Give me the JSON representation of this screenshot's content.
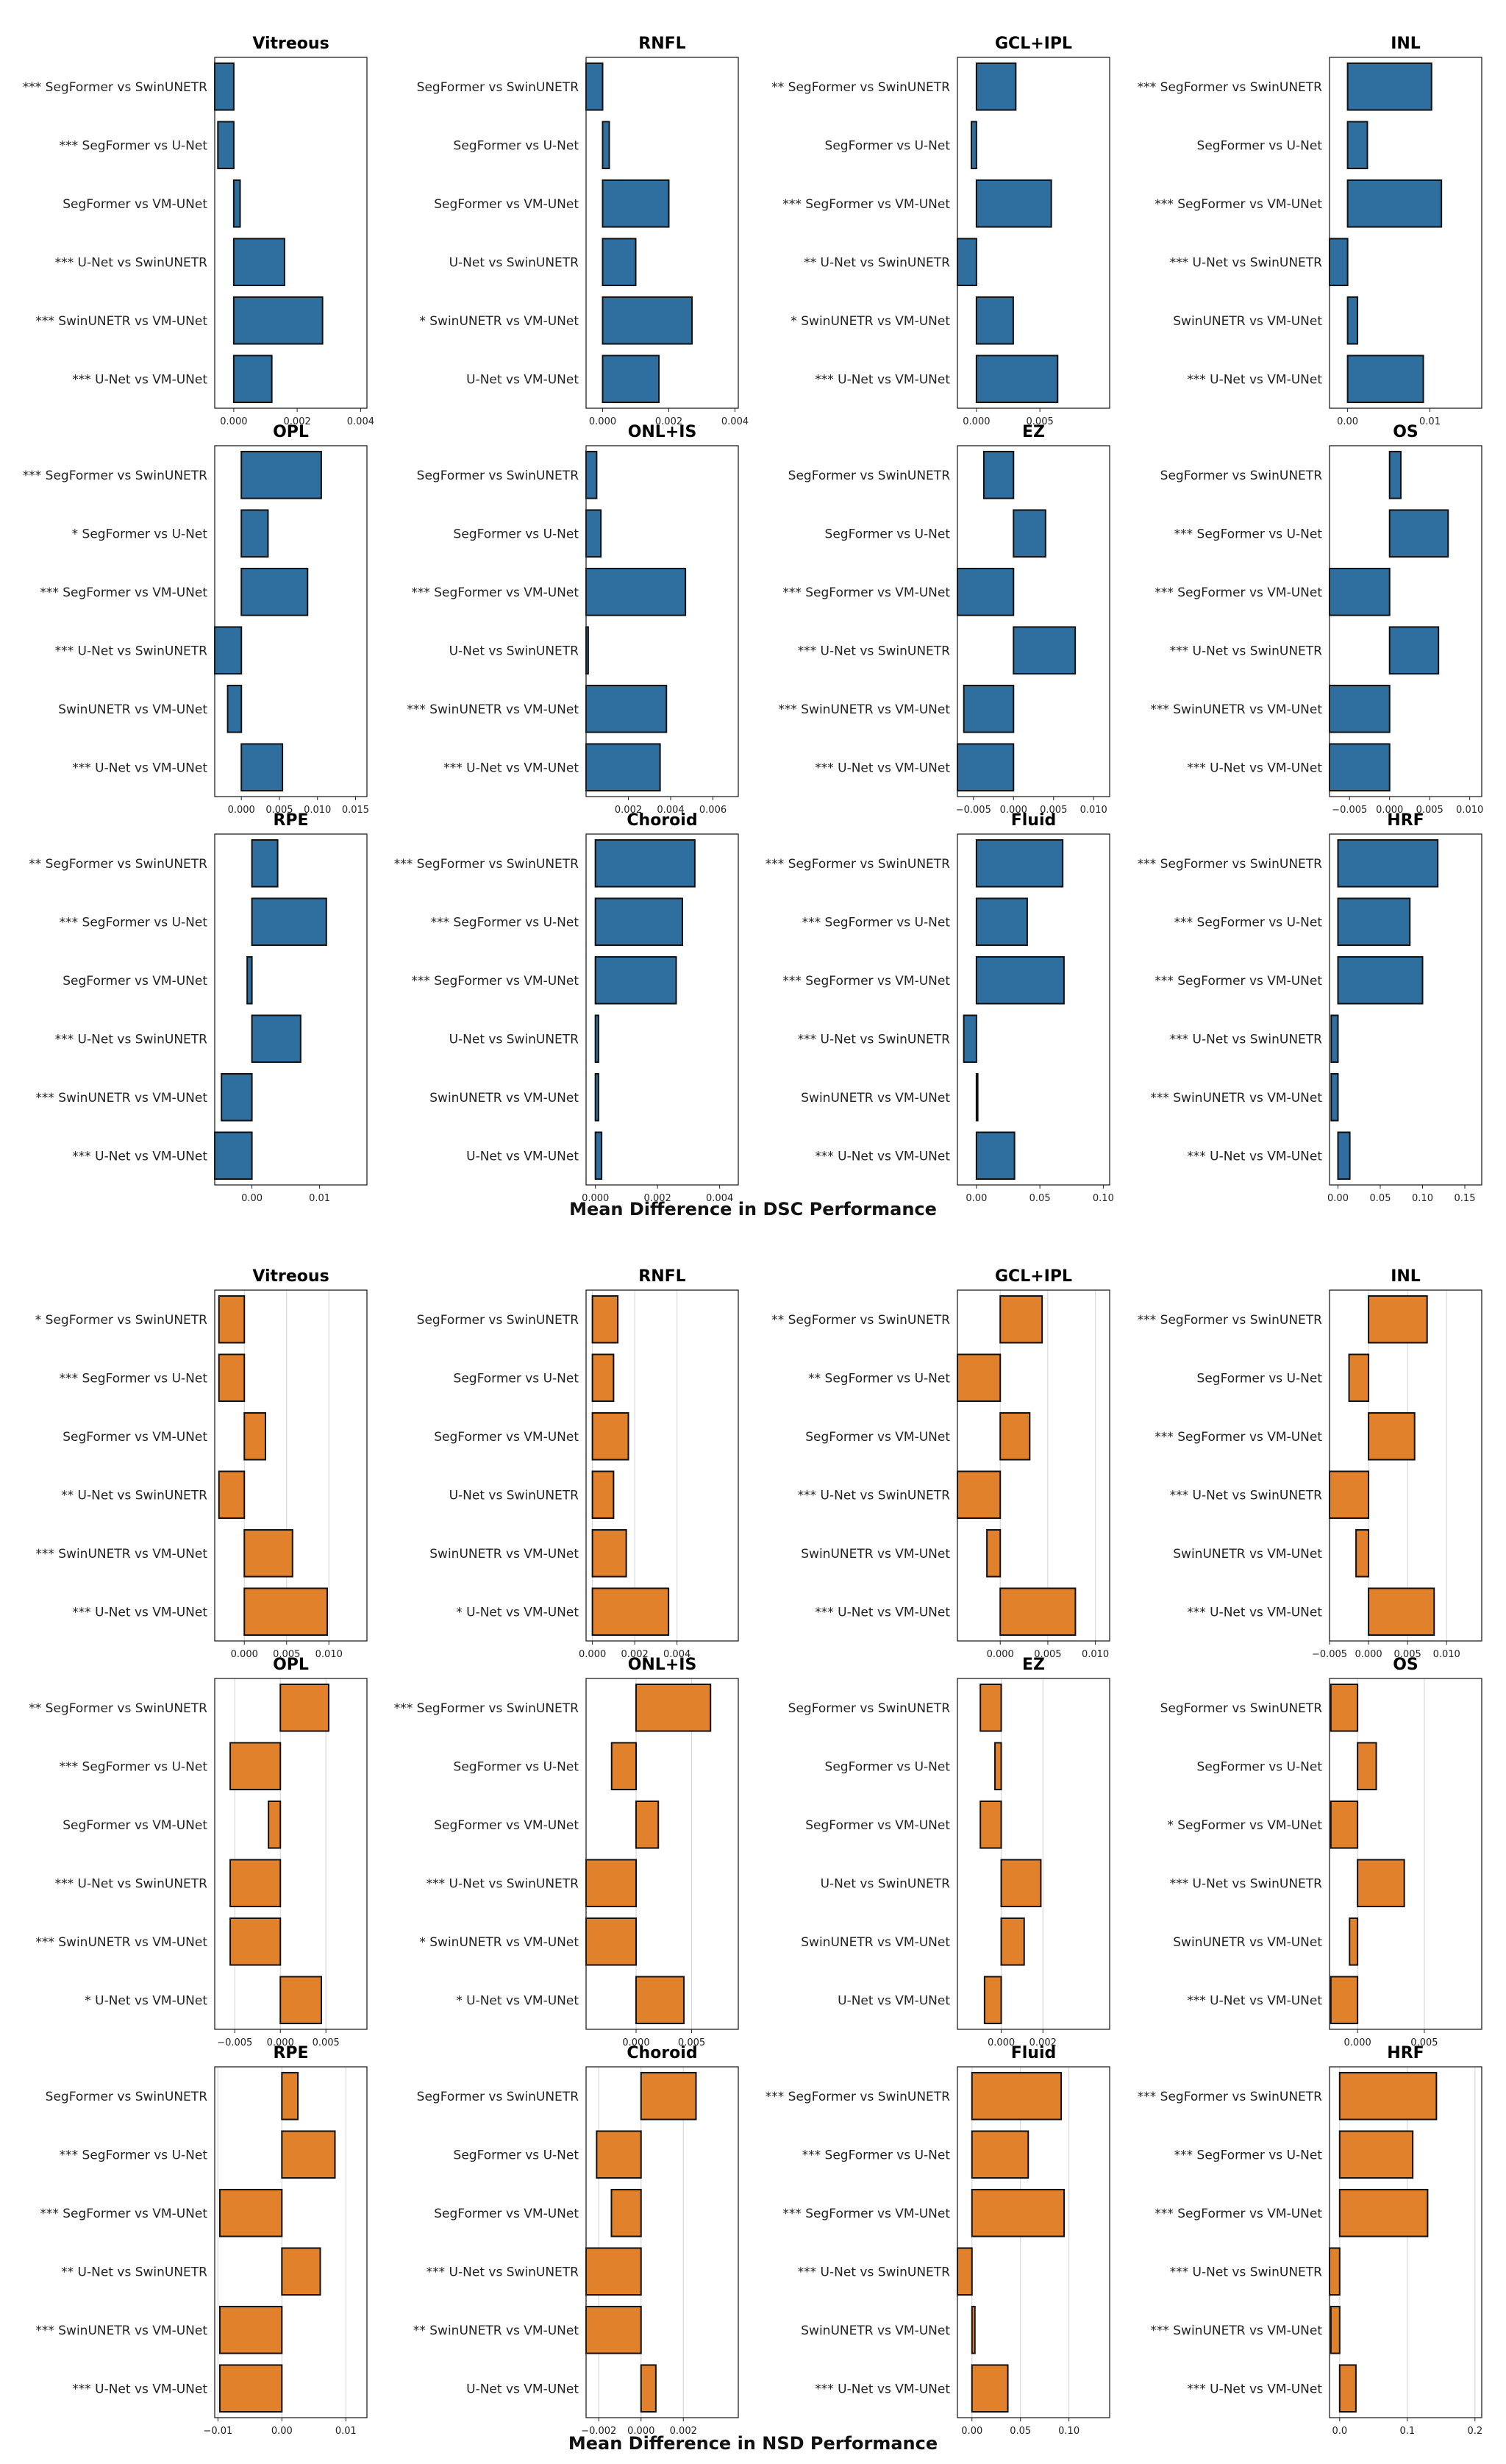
{
  "chart_data": [
    {
      "type": "bar",
      "orientation": "horizontal",
      "metric": "DSC",
      "xlabel": "Mean Difference in DSC Performance",
      "color": "#2e6f9f",
      "grid": false,
      "panels": [
        {
          "title": "Vitreous",
          "xlim": [
            -0.0006,
            0.0042
          ],
          "xticks": [
            0,
            0.002,
            0.004
          ],
          "xticklabels": [
            "0.000",
            "0.002",
            "0.004"
          ],
          "labels": [
            "*** SegFormer vs SwinUNETR",
            "*** SegFormer vs U-Net",
            "SegFormer vs VM-UNet",
            "*** U-Net vs SwinUNETR",
            "*** SwinUNETR vs VM-UNet",
            "*** U-Net vs VM-UNet"
          ],
          "values": [
            -0.0006,
            -0.0005,
            0.0002,
            0.0016,
            0.0028,
            0.0012
          ]
        },
        {
          "title": "RNFL",
          "xlim": [
            -0.0005,
            0.0041
          ],
          "xticks": [
            0,
            0.002,
            0.004
          ],
          "xticklabels": [
            "0.000",
            "0.002",
            "0.004"
          ],
          "labels": [
            "SegFormer vs SwinUNETR",
            "SegFormer vs U-Net",
            "SegFormer vs VM-UNet",
            "U-Net vs SwinUNETR",
            "* SwinUNETR vs VM-UNet",
            "U-Net vs VM-UNet"
          ],
          "values": [
            -0.0005,
            0.0002,
            0.002,
            0.001,
            0.0027,
            0.0017
          ]
        },
        {
          "title": "GCL+IPL",
          "xlim": [
            -0.0015,
            0.0105
          ],
          "xticks": [
            0,
            0.005
          ],
          "xticklabels": [
            "0.000",
            "0.005"
          ],
          "labels": [
            "** SegFormer vs SwinUNETR",
            "SegFormer vs U-Net",
            "*** SegFormer vs VM-UNet",
            "** U-Net vs SwinUNETR",
            "* SwinUNETR vs VM-UNet",
            "*** U-Net vs VM-UNet"
          ],
          "values": [
            0.0031,
            -0.0004,
            0.0059,
            -0.0015,
            0.0029,
            0.0064
          ]
        },
        {
          "title": "INL",
          "xlim": [
            -0.0022,
            0.0163
          ],
          "xticks": [
            0,
            0.01
          ],
          "xticklabels": [
            "0.00",
            "0.01"
          ],
          "labels": [
            "*** SegFormer vs SwinUNETR",
            "SegFormer vs U-Net",
            "*** SegFormer vs VM-UNet",
            "*** U-Net vs SwinUNETR",
            "SwinUNETR vs VM-UNet",
            "*** U-Net vs VM-UNet"
          ],
          "values": [
            0.0102,
            0.0024,
            0.0114,
            -0.0022,
            0.0012,
            0.0092
          ]
        },
        {
          "title": "OPL",
          "xlim": [
            -0.0035,
            0.0165
          ],
          "xticks": [
            0,
            0.005,
            0.01,
            0.015
          ],
          "xticklabels": [
            "0.000",
            "0.005",
            "0.010",
            "0.015"
          ],
          "labels": [
            "*** SegFormer vs SwinUNETR",
            "* SegFormer vs U-Net",
            "*** SegFormer vs VM-UNet",
            "*** U-Net vs SwinUNETR",
            "SwinUNETR vs VM-UNet",
            "*** U-Net vs VM-UNet"
          ],
          "values": [
            0.0105,
            0.0035,
            0.0087,
            -0.0035,
            -0.0018,
            0.0054
          ]
        },
        {
          "title": "ONL+IS",
          "xlim": [
            0,
            0.0072
          ],
          "xticks": [
            0.002,
            0.004,
            0.006
          ],
          "xticklabels": [
            "0.002",
            "0.004",
            "0.006"
          ],
          "labels": [
            "SegFormer vs SwinUNETR",
            "SegFormer vs U-Net",
            "*** SegFormer vs VM-UNet",
            "U-Net vs SwinUNETR",
            "*** SwinUNETR vs VM-UNet",
            "*** U-Net vs VM-UNet"
          ],
          "values": [
            0.0005,
            0.0007,
            0.0047,
            0.0001,
            0.0038,
            0.0035
          ]
        },
        {
          "title": "EZ",
          "xlim": [
            -0.007,
            0.012
          ],
          "xticks": [
            -0.005,
            0,
            0.005,
            0.01
          ],
          "xticklabels": [
            "−0.005",
            "0.000",
            "0.005",
            "0.010"
          ],
          "labels": [
            "SegFormer vs SwinUNETR",
            "SegFormer vs U-Net",
            "*** SegFormer vs VM-UNet",
            "*** U-Net vs SwinUNETR",
            "*** SwinUNETR vs VM-UNet",
            "*** U-Net vs VM-UNet"
          ],
          "values": [
            -0.0037,
            0.004,
            -0.007,
            0.0077,
            -0.0062,
            -0.007
          ]
        },
        {
          "title": "OS",
          "xlim": [
            -0.0075,
            0.0115
          ],
          "xticks": [
            -0.005,
            0,
            0.005,
            0.01
          ],
          "xticklabels": [
            "−0.005",
            "0.000",
            "0.005",
            "0.010"
          ],
          "labels": [
            "SegFormer vs SwinUNETR",
            "*** SegFormer vs U-Net",
            "*** SegFormer vs VM-UNet",
            "*** U-Net vs SwinUNETR",
            "*** SwinUNETR vs VM-UNet",
            "*** U-Net vs VM-UNet"
          ],
          "values": [
            0.0014,
            0.0073,
            -0.0075,
            0.0061,
            -0.0075,
            -0.0075
          ]
        },
        {
          "title": "RPE",
          "xlim": [
            -0.0055,
            0.017
          ],
          "xticks": [
            0,
            0.01
          ],
          "xticklabels": [
            "0.00",
            "0.01"
          ],
          "labels": [
            "** SegFormer vs SwinUNETR",
            "*** SegFormer vs U-Net",
            "SegFormer vs VM-UNet",
            "*** U-Net vs SwinUNETR",
            "*** SwinUNETR vs VM-UNet",
            "*** U-Net vs VM-UNet"
          ],
          "values": [
            0.0038,
            0.011,
            -0.0007,
            0.0072,
            -0.0045,
            -0.0055
          ]
        },
        {
          "title": "Choroid",
          "xlim": [
            -0.0003,
            0.0046
          ],
          "xticks": [
            0,
            0.002,
            0.004
          ],
          "xticklabels": [
            "0.000",
            "0.002",
            "0.004"
          ],
          "labels": [
            "*** SegFormer vs SwinUNETR",
            "*** SegFormer vs U-Net",
            "*** SegFormer vs VM-UNet",
            "U-Net vs SwinUNETR",
            "SwinUNETR vs VM-UNet",
            "U-Net vs VM-UNet"
          ],
          "values": [
            0.0032,
            0.0028,
            0.0026,
            0.0001,
            0.0001,
            0.0002
          ]
        },
        {
          "title": "Fluid",
          "xlim": [
            -0.015,
            0.105
          ],
          "xticks": [
            0,
            0.05,
            0.1
          ],
          "xticklabels": [
            "0.00",
            "0.05",
            "0.10"
          ],
          "labels": [
            "*** SegFormer vs SwinUNETR",
            "*** SegFormer vs U-Net",
            "*** SegFormer vs VM-UNet",
            "*** U-Net vs SwinUNETR",
            "SwinUNETR vs VM-UNet",
            "*** U-Net vs VM-UNet"
          ],
          "values": [
            0.068,
            0.04,
            0.069,
            -0.01,
            0.001,
            0.03
          ]
        },
        {
          "title": "HRF",
          "xlim": [
            -0.01,
            0.17
          ],
          "xticks": [
            0,
            0.05,
            0.1,
            0.15
          ],
          "xticklabels": [
            "0.00",
            "0.05",
            "0.10",
            "0.15"
          ],
          "labels": [
            "*** SegFormer vs SwinUNETR",
            "*** SegFormer vs U-Net",
            "*** SegFormer vs VM-UNet",
            "*** U-Net vs SwinUNETR",
            "*** SwinUNETR vs VM-UNet",
            "*** U-Net vs VM-UNet"
          ],
          "values": [
            0.118,
            0.085,
            0.1,
            -0.008,
            -0.008,
            0.014
          ]
        }
      ]
    },
    {
      "type": "bar",
      "orientation": "horizontal",
      "metric": "NSD",
      "xlabel": "Mean Difference in NSD Performance",
      "color": "#e2812c",
      "grid": true,
      "panels": [
        {
          "title": "Vitreous",
          "xlim": [
            -0.0035,
            0.0145
          ],
          "xticks": [
            0,
            0.005,
            0.01
          ],
          "xticklabels": [
            "0.000",
            "0.005",
            "0.010"
          ],
          "labels": [
            "* SegFormer vs SwinUNETR",
            "*** SegFormer vs U-Net",
            "SegFormer vs VM-UNet",
            "** U-Net vs SwinUNETR",
            "*** SwinUNETR vs VM-UNet",
            "*** U-Net vs VM-UNet"
          ],
          "values": [
            -0.003,
            -0.003,
            0.0025,
            -0.003,
            0.0057,
            0.0098
          ]
        },
        {
          "title": "RNFL",
          "xlim": [
            -0.0003,
            0.0069
          ],
          "xticks": [
            0,
            0.002,
            0.004
          ],
          "xticklabels": [
            "0.000",
            "0.002",
            "0.004"
          ],
          "labels": [
            "SegFormer vs SwinUNETR",
            "SegFormer vs U-Net",
            "SegFormer vs VM-UNet",
            "U-Net vs SwinUNETR",
            "SwinUNETR vs VM-UNet",
            "* U-Net vs VM-UNet"
          ],
          "values": [
            0.0012,
            0.001,
            0.0017,
            0.001,
            0.0016,
            0.0036
          ]
        },
        {
          "title": "GCL+IPL",
          "xlim": [
            -0.0045,
            0.0115
          ],
          "xticks": [
            0,
            0.005,
            0.01
          ],
          "xticklabels": [
            "0.000",
            "0.005",
            "0.010"
          ],
          "labels": [
            "** SegFormer vs SwinUNETR",
            "** SegFormer vs U-Net",
            "SegFormer vs VM-UNet",
            "*** U-Net vs SwinUNETR",
            "SwinUNETR vs VM-UNet",
            "*** U-Net vs VM-UNet"
          ],
          "values": [
            0.0044,
            -0.0045,
            0.0031,
            -0.0045,
            -0.0014,
            0.0079
          ]
        },
        {
          "title": "INL",
          "xlim": [
            -0.005,
            0.0145
          ],
          "xticks": [
            -0.005,
            0,
            0.005,
            0.01
          ],
          "xticklabels": [
            "−0.005",
            "0.000",
            "0.005",
            "0.010"
          ],
          "labels": [
            "*** SegFormer vs SwinUNETR",
            "SegFormer vs U-Net",
            "*** SegFormer vs VM-UNet",
            "*** U-Net vs SwinUNETR",
            "SwinUNETR vs VM-UNet",
            "*** U-Net vs VM-UNet"
          ],
          "values": [
            0.0075,
            -0.0025,
            0.0059,
            -0.005,
            -0.0016,
            0.0084
          ]
        },
        {
          "title": "OPL",
          "xlim": [
            -0.0072,
            0.0095
          ],
          "xticks": [
            -0.005,
            0,
            0.005
          ],
          "xticklabels": [
            "−0.005",
            "0.000",
            "0.005"
          ],
          "labels": [
            "** SegFormer vs SwinUNETR",
            "*** SegFormer vs U-Net",
            "SegFormer vs VM-UNet",
            "*** U-Net vs SwinUNETR",
            "*** SwinUNETR vs VM-UNet",
            "* U-Net vs VM-UNet"
          ],
          "values": [
            0.0053,
            -0.0055,
            -0.0013,
            -0.0055,
            -0.0055,
            0.0045
          ]
        },
        {
          "title": "ONL+IS",
          "xlim": [
            -0.0045,
            0.0092
          ],
          "xticks": [
            0,
            0.005
          ],
          "xticklabels": [
            "0.000",
            "0.005"
          ],
          "labels": [
            "*** SegFormer vs SwinUNETR",
            "SegFormer vs U-Net",
            "SegFormer vs VM-UNet",
            "*** U-Net vs SwinUNETR",
            "* SwinUNETR vs VM-UNet",
            "* U-Net vs VM-UNet"
          ],
          "values": [
            0.0067,
            -0.0022,
            0.002,
            -0.0045,
            -0.0045,
            0.0043
          ]
        },
        {
          "title": "EZ",
          "xlim": [
            -0.0021,
            0.0052
          ],
          "xticks": [
            0,
            0.002
          ],
          "xticklabels": [
            "0.000",
            "0.002"
          ],
          "labels": [
            "SegFormer vs SwinUNETR",
            "SegFormer vs U-Net",
            "SegFormer vs VM-UNet",
            "U-Net vs SwinUNETR",
            "SwinUNETR vs VM-UNet",
            "U-Net vs VM-UNet"
          ],
          "values": [
            -0.001,
            -0.0003,
            -0.001,
            0.0019,
            0.0011,
            -0.0008
          ]
        },
        {
          "title": "OS",
          "xlim": [
            -0.0021,
            0.0093
          ],
          "xticks": [
            0,
            0.005
          ],
          "xticklabels": [
            "0.000",
            "0.005"
          ],
          "labels": [
            "SegFormer vs SwinUNETR",
            "SegFormer vs U-Net",
            "* SegFormer vs VM-UNet",
            "*** U-Net vs SwinUNETR",
            "SwinUNETR vs VM-UNet",
            "*** U-Net vs VM-UNet"
          ],
          "values": [
            -0.002,
            0.0014,
            -0.002,
            0.0035,
            -0.0006,
            -0.002
          ]
        },
        {
          "title": "RPE",
          "xlim": [
            -0.0105,
            0.0133
          ],
          "xticks": [
            -0.01,
            0,
            0.01
          ],
          "xticklabels": [
            "−0.01",
            "0.00",
            "0.01"
          ],
          "labels": [
            "SegFormer vs SwinUNETR",
            "*** SegFormer vs U-Net",
            "*** SegFormer vs VM-UNet",
            "** U-Net vs SwinUNETR",
            "*** SwinUNETR vs VM-UNet",
            "*** U-Net vs VM-UNet"
          ],
          "values": [
            0.0025,
            0.0083,
            -0.0097,
            0.006,
            -0.0097,
            -0.0097
          ]
        },
        {
          "title": "Choroid",
          "xlim": [
            -0.0026,
            0.0046
          ],
          "xticks": [
            -0.002,
            0,
            0.002
          ],
          "xticklabels": [
            "−0.002",
            "0.000",
            "0.002"
          ],
          "labels": [
            "SegFormer vs SwinUNETR",
            "SegFormer vs U-Net",
            "SegFormer vs VM-UNet",
            "*** U-Net vs SwinUNETR",
            "** SwinUNETR vs VM-UNet",
            "U-Net vs VM-UNet"
          ],
          "values": [
            0.0026,
            -0.0021,
            -0.0014,
            -0.0026,
            -0.0026,
            0.0007
          ]
        },
        {
          "title": "Fluid",
          "xlim": [
            -0.015,
            0.142
          ],
          "xticks": [
            0,
            0.05,
            0.1
          ],
          "xticklabels": [
            "0.00",
            "0.05",
            "0.10"
          ],
          "labels": [
            "*** SegFormer vs SwinUNETR",
            "*** SegFormer vs U-Net",
            "*** SegFormer vs VM-UNet",
            "*** U-Net vs SwinUNETR",
            "SwinUNETR vs VM-UNet",
            "*** U-Net vs VM-UNet"
          ],
          "values": [
            0.092,
            0.058,
            0.095,
            -0.015,
            0.003,
            0.037
          ]
        },
        {
          "title": "HRF",
          "xlim": [
            -0.015,
            0.21
          ],
          "xticks": [
            0,
            0.1,
            0.2
          ],
          "xticklabels": [
            "0.0",
            "0.1",
            "0.2"
          ],
          "labels": [
            "*** SegFormer vs SwinUNETR",
            "*** SegFormer vs U-Net",
            "*** SegFormer vs VM-UNet",
            "*** U-Net vs SwinUNETR",
            "*** SwinUNETR vs VM-UNet",
            "*** U-Net vs VM-UNet"
          ],
          "values": [
            0.143,
            0.108,
            0.13,
            -0.015,
            -0.013,
            0.024
          ]
        }
      ]
    }
  ]
}
